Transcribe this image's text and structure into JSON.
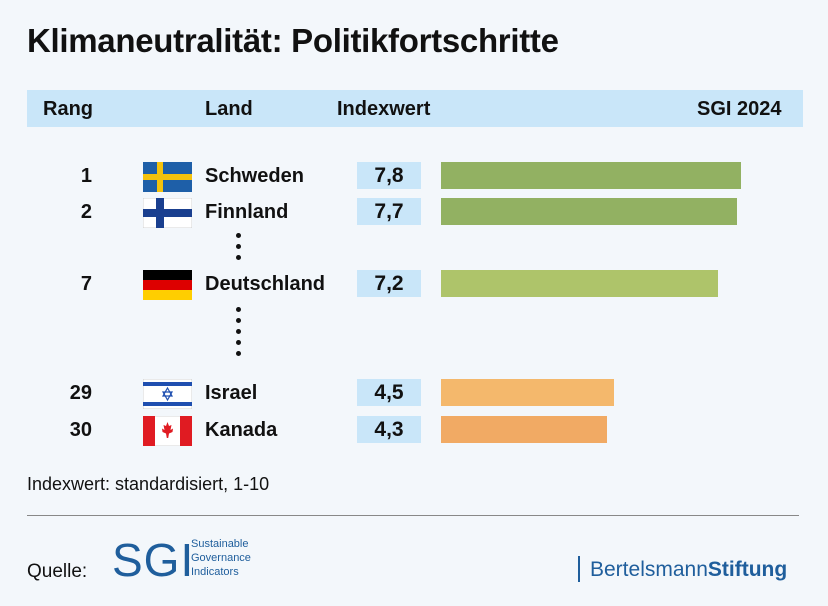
{
  "title": "Klimaneutralität: Politikfortschritte",
  "header": {
    "rank": "Rang",
    "country": "Land",
    "index": "Indexwert",
    "edition": "SGI 2024"
  },
  "chart_data": {
    "type": "bar",
    "orientation": "horizontal",
    "title": "Klimaneutralität: Politikfortschritte",
    "xlim": [
      0,
      10
    ],
    "categories": [
      "Schweden",
      "Finnland",
      "Deutschland",
      "Israel",
      "Kanada"
    ],
    "ranks": [
      1,
      2,
      7,
      29,
      30
    ],
    "values": [
      7.8,
      7.7,
      7.2,
      4.5,
      4.3
    ],
    "value_labels": [
      "7,8",
      "7,7",
      "7,2",
      "4,5",
      "4,3"
    ],
    "bar_colors": [
      "#92b162",
      "#92b162",
      "#aec46a",
      "#f4b86c",
      "#f1aa64"
    ],
    "flag_icons": [
      "sweden-flag-icon",
      "finland-flag-icon",
      "germany-flag-icon",
      "israel-flag-icon",
      "canada-flag-icon"
    ]
  },
  "note": "Indexwert: standardisiert, 1-10",
  "footer": {
    "source_label": "Quelle:",
    "sgi_logo": "SGI",
    "sgi_lines": [
      "Sustainable",
      "Governance",
      "Indicators"
    ],
    "brand_regular": "Bertelsmann",
    "brand_bold": "Stiftung"
  }
}
